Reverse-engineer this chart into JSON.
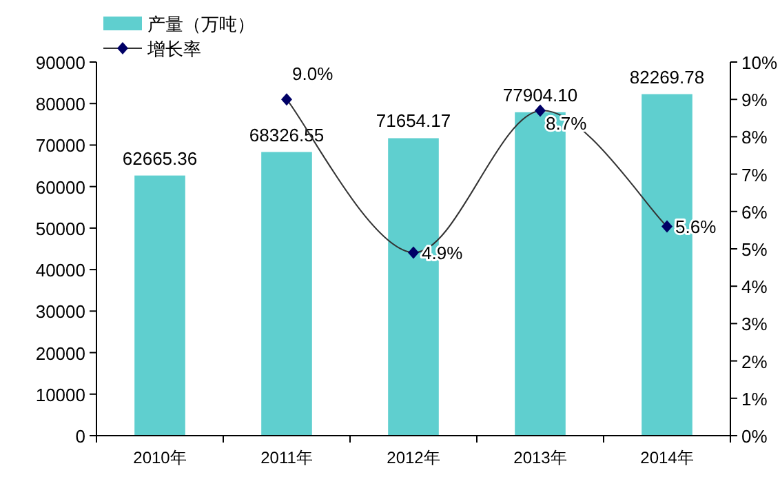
{
  "chart_data": {
    "type": "bar",
    "categories": [
      "2010年",
      "2011年",
      "2012年",
      "2013年",
      "2014年"
    ],
    "series": [
      {
        "name": "产量（万吨）",
        "color": "#5fcfcf",
        "values": [
          62665.36,
          68326.55,
          71654.17,
          77904.1,
          82269.78
        ],
        "value_labels": [
          "62665.36",
          "68326.55",
          "71654.17",
          "77904.10",
          "82269.78"
        ]
      },
      {
        "name": "增长率",
        "type": "line",
        "axis": "y2",
        "color": "#000066",
        "values": [
          null,
          9.0,
          4.9,
          8.7,
          5.6
        ],
        "value_labels": [
          null,
          "9.0%",
          "4.9%",
          "8.7%",
          "5.6%"
        ]
      }
    ],
    "ylim": [
      0,
      90000
    ],
    "yticks": [
      0,
      10000,
      20000,
      30000,
      40000,
      50000,
      60000,
      70000,
      80000,
      90000
    ],
    "y2lim": [
      0,
      10
    ],
    "y2ticks": [
      {
        "value": 0,
        "label": "0%"
      },
      {
        "value": 1,
        "label": "1%"
      },
      {
        "value": 2,
        "label": "2%"
      },
      {
        "value": 3,
        "label": "3%"
      },
      {
        "value": 4,
        "label": "4%"
      },
      {
        "value": 5,
        "label": "5%"
      },
      {
        "value": 6,
        "label": "6%"
      },
      {
        "value": 7,
        "label": "7%"
      },
      {
        "value": 8,
        "label": "8%"
      },
      {
        "value": 9,
        "label": "9%"
      },
      {
        "value": 10,
        "label": "10%"
      }
    ],
    "legend": "top left",
    "marker": "diamond",
    "grid": false
  }
}
